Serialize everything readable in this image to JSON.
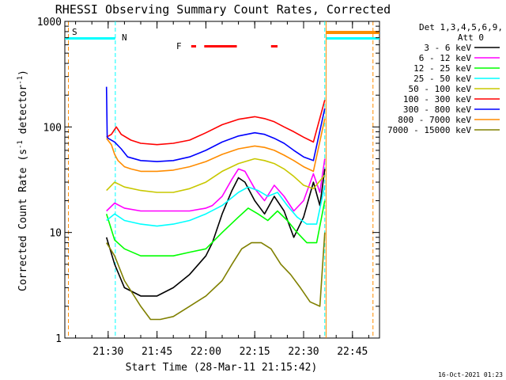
{
  "chart_data": {
    "type": "line",
    "title": "RHESSI Observing Summary Count Rates, Corrected",
    "xlabel": "Start Time (28-Mar-11 21:15:42)",
    "ylabel_main": "Corrected Count Rate (s",
    "ylabel_sup1": "-1",
    "ylabel_mid": " detector",
    "ylabel_sup2": "-1",
    "ylabel_end": ")",
    "yscale": "log",
    "ylim": [
      1,
      1000
    ],
    "xlim_min": [
      1276.7,
      1373.3
    ],
    "y_ticks": [
      {
        "value": 1,
        "label": "1"
      },
      {
        "value": 10,
        "label": "10"
      },
      {
        "value": 100,
        "label": "100"
      },
      {
        "value": 1000,
        "label": "1000"
      }
    ],
    "x_ticks": [
      {
        "value": 1290,
        "label": "21:30"
      },
      {
        "value": 1305,
        "label": "21:45"
      },
      {
        "value": 1320,
        "label": "22:00"
      },
      {
        "value": 1335,
        "label": "22:15"
      },
      {
        "value": 1350,
        "label": "22:30"
      },
      {
        "value": 1365,
        "label": "22:45"
      }
    ],
    "legend": {
      "header1": "Det 1,3,4,5,6,9,",
      "header2": "Att 0",
      "placement": "right"
    },
    "flags": {
      "saa_label": "S",
      "night_label": "N",
      "flare_label": "F",
      "saa_lines": [
        1277.8,
        1371.3
      ],
      "night_lines": [
        1292.2,
        1356.5
      ],
      "saa_bar_color": "#ff8c00",
      "night_bar_color": "#00ffff",
      "flare_bar_color": "#ff0000",
      "saa_bar_x": [
        [
          1357.0,
          1373.3
        ]
      ],
      "night_bar_x": [
        [
          1276.7,
          1292.2
        ],
        [
          1357.0,
          1373.3
        ]
      ],
      "flare_bar_x": [
        [
          1315.5,
          1317.0
        ],
        [
          1319.5,
          1329.5
        ],
        [
          1340.0,
          1342.0
        ]
      ]
    },
    "series": [
      {
        "name": "3 - 6 keV",
        "color": "#000000",
        "x": [
          1289.5,
          1292,
          1295,
          1300,
          1305,
          1310,
          1315,
          1320,
          1322,
          1325,
          1328,
          1330,
          1332,
          1335,
          1338,
          1341,
          1344,
          1347,
          1350,
          1353,
          1355,
          1356.5
        ],
        "y": [
          9,
          5,
          3,
          2.5,
          2.5,
          3,
          4,
          6,
          8,
          15,
          25,
          33,
          30,
          20,
          15,
          22,
          16,
          9,
          14,
          30,
          18,
          40
        ]
      },
      {
        "name": "6 - 12 keV",
        "color": "#ff00ff",
        "x": [
          1289.5,
          1292,
          1295,
          1300,
          1305,
          1310,
          1315,
          1320,
          1322,
          1325,
          1328,
          1330,
          1332,
          1335,
          1338,
          1341,
          1344,
          1347,
          1350,
          1353,
          1355,
          1356.5
        ],
        "y": [
          16,
          19,
          17,
          16,
          16,
          16,
          16,
          17,
          18,
          22,
          32,
          40,
          38,
          26,
          20,
          28,
          22,
          16,
          20,
          36,
          24,
          50
        ]
      },
      {
        "name": "12 - 25 keV",
        "color": "#00ff00",
        "x": [
          1289.5,
          1292,
          1295,
          1300,
          1305,
          1310,
          1315,
          1320,
          1325,
          1330,
          1333,
          1336,
          1339,
          1342,
          1345,
          1348,
          1351,
          1354,
          1356.5
        ],
        "y": [
          15,
          8.5,
          7,
          6,
          6,
          6,
          6.5,
          7,
          10,
          14,
          17,
          15,
          13,
          16,
          13,
          10,
          8,
          8,
          20
        ]
      },
      {
        "name": "25 - 50 keV",
        "color": "#00ffff",
        "x": [
          1289.5,
          1292,
          1295,
          1300,
          1305,
          1310,
          1315,
          1320,
          1325,
          1330,
          1333,
          1336,
          1339,
          1342,
          1345,
          1348,
          1351,
          1354,
          1356.5
        ],
        "y": [
          13,
          15,
          13,
          12,
          11.5,
          12,
          13,
          15,
          18,
          24,
          27,
          25,
          22,
          24,
          18,
          14,
          12,
          12,
          28
        ]
      },
      {
        "name": "50 - 100 keV",
        "color": "#c8c800",
        "x": [
          1289.5,
          1292,
          1295,
          1300,
          1305,
          1310,
          1315,
          1320,
          1325,
          1330,
          1335,
          1338,
          1341,
          1344,
          1347,
          1350,
          1353,
          1356.5
        ],
        "y": [
          25,
          30,
          27,
          25,
          24,
          24,
          26,
          30,
          38,
          45,
          50,
          48,
          45,
          40,
          34,
          28,
          26,
          35
        ]
      },
      {
        "name": "100 - 300 keV",
        "color": "#ff0000",
        "x": [
          1289.5,
          1291,
          1292.5,
          1294,
          1297,
          1300,
          1305,
          1310,
          1315,
          1320,
          1325,
          1330,
          1335,
          1338,
          1341,
          1344,
          1347,
          1350,
          1353,
          1356.5
        ],
        "y": [
          80,
          85,
          100,
          85,
          75,
          70,
          68,
          70,
          75,
          88,
          105,
          118,
          125,
          120,
          112,
          100,
          90,
          80,
          72,
          180
        ]
      },
      {
        "name": "300 - 800 keV",
        "color": "#0000ff",
        "x": [
          1289.5,
          1289.7,
          1290,
          1292,
          1294,
          1296,
          1300,
          1305,
          1310,
          1315,
          1320,
          1325,
          1330,
          1335,
          1338,
          1341,
          1344,
          1347,
          1350,
          1353,
          1356.5
        ],
        "y": [
          240,
          80,
          78,
          72,
          62,
          52,
          48,
          47,
          48,
          52,
          60,
          72,
          82,
          88,
          85,
          78,
          70,
          60,
          52,
          48,
          150
        ]
      },
      {
        "name": "800 - 7000 keV",
        "color": "#ff8c00",
        "x": [
          1289.5,
          1291,
          1292,
          1293,
          1295,
          1297,
          1300,
          1305,
          1310,
          1315,
          1320,
          1325,
          1330,
          1335,
          1338,
          1341,
          1344,
          1347,
          1350,
          1353,
          1356.5
        ],
        "y": [
          78,
          68,
          55,
          48,
          42,
          40,
          38,
          38,
          39,
          42,
          47,
          55,
          62,
          66,
          64,
          60,
          54,
          48,
          42,
          38,
          120
        ]
      },
      {
        "name": "7000 - 15000 keV",
        "color": "#808000",
        "x": [
          1289.5,
          1292,
          1295,
          1300,
          1303,
          1306,
          1310,
          1315,
          1320,
          1325,
          1328,
          1331,
          1334,
          1337,
          1340,
          1343,
          1346,
          1349,
          1352,
          1355,
          1356.5
        ],
        "y": [
          8,
          6,
          3.5,
          2,
          1.5,
          1.5,
          1.6,
          2,
          2.5,
          3.5,
          5,
          7,
          8,
          8,
          7,
          5,
          4,
          3,
          2.2,
          2,
          10
        ]
      }
    ]
  },
  "footer": {
    "date_stamp": "16-Oct-2021 01:23"
  }
}
